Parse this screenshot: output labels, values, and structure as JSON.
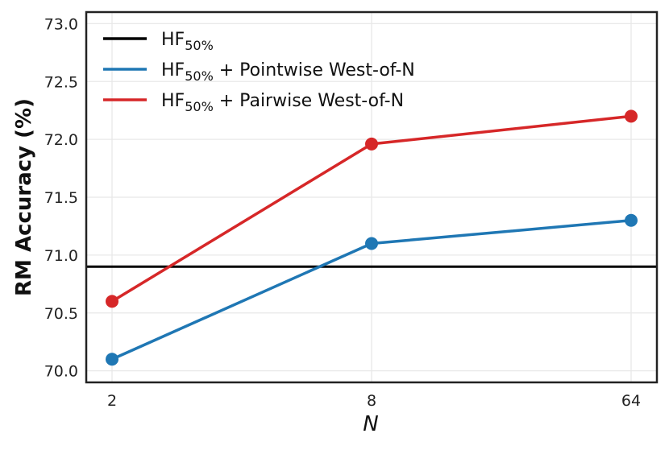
{
  "chart_data": {
    "type": "line",
    "xlabel": "N",
    "ylabel": "RM Accuracy (%)",
    "categories": [
      "2",
      "8",
      "64"
    ],
    "ylim": [
      69.9,
      73.1
    ],
    "yticks": [
      "70.0",
      "70.5",
      "71.0",
      "71.5",
      "72.0",
      "72.5",
      "73.0"
    ],
    "grid": true,
    "legend_position": "top-left",
    "baseline": {
      "name_base": "HF",
      "name_sub": "50%",
      "name_suffix": "",
      "value": 70.9,
      "color": "#000000"
    },
    "series": [
      {
        "name_base": "HF",
        "name_sub": "50%",
        "name_suffix": " + Pointwise West-of-N",
        "values": [
          70.1,
          71.1,
          71.3
        ],
        "color": "#1f77b4"
      },
      {
        "name_base": "HF",
        "name_sub": "50%",
        "name_suffix": " + Pairwise West-of-N",
        "values": [
          70.6,
          71.96,
          72.2
        ],
        "color": "#d62728"
      }
    ]
  }
}
